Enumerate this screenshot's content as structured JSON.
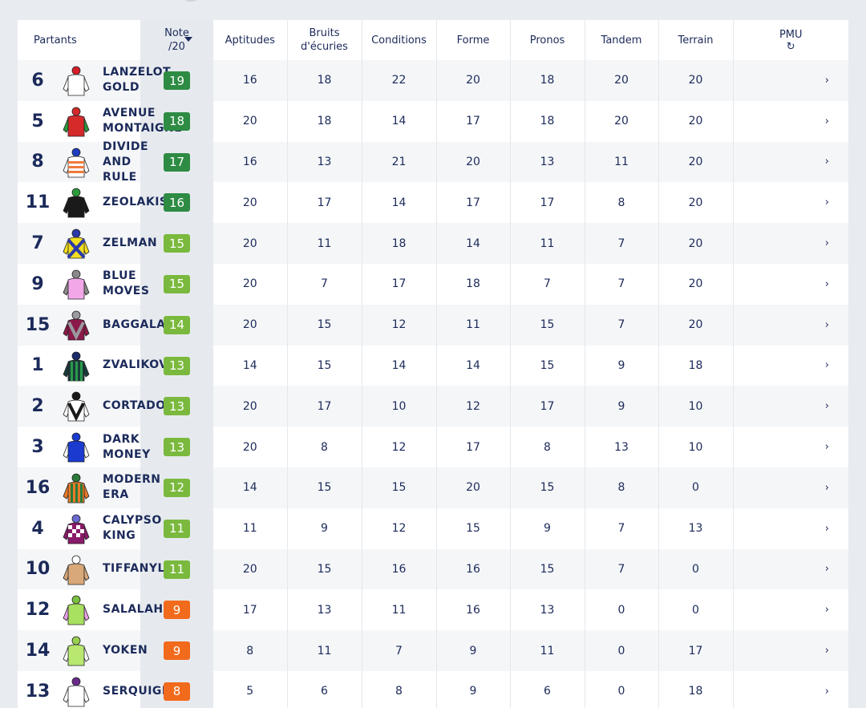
{
  "header": {
    "partants": "Partants",
    "note": "Note",
    "note_sub": "/20",
    "aptitudes": "Aptitudes",
    "bruits_l1": "Bruits",
    "bruits_l2": "d'écuries",
    "conditions": "Conditions",
    "forme": "Forme",
    "pronos": "Pronos",
    "tandem": "Tandem",
    "terrain": "Terrain",
    "pmu": "PMU",
    "pmu_icon": "↻"
  },
  "colors": {
    "green_dark": "#2e8b43",
    "green_light": "#7ab93d",
    "orange": "#f26a1b"
  },
  "chevron": "›",
  "rows": [
    {
      "num": "6",
      "name": [
        "LANZELOT",
        "GOLD"
      ],
      "note": "19",
      "level": "dark",
      "aptitudes": "16",
      "bruits": "18",
      "conditions": "22",
      "forme": "20",
      "pronos": "18",
      "tandem": "20",
      "terrain": "20",
      "silk": {
        "body": "#ffffff",
        "accent": "#1a1a1a",
        "cap": "#d61e2b",
        "pattern": "plain"
      }
    },
    {
      "num": "5",
      "name": [
        "AVENUE",
        "MONTAIGNE"
      ],
      "note": "18",
      "level": "dark",
      "aptitudes": "20",
      "bruits": "18",
      "conditions": "14",
      "forme": "17",
      "pronos": "18",
      "tandem": "20",
      "terrain": "20",
      "silk": {
        "body": "#d42a2a",
        "accent": "#2a9a3a",
        "cap": "#d42a2a",
        "pattern": "sleeves"
      }
    },
    {
      "num": "8",
      "name": [
        "DIVIDE",
        "AND",
        "RULE"
      ],
      "note": "17",
      "level": "dark",
      "aptitudes": "16",
      "bruits": "13",
      "conditions": "21",
      "forme": "20",
      "pronos": "13",
      "tandem": "11",
      "terrain": "20",
      "silk": {
        "body": "#ffffff",
        "accent": "#f07a3a",
        "cap": "#1e3cc0",
        "pattern": "hoops"
      }
    },
    {
      "num": "11",
      "name": [
        "ZEOLAKIS"
      ],
      "note": "16",
      "level": "dark",
      "aptitudes": "20",
      "bruits": "17",
      "conditions": "14",
      "forme": "17",
      "pronos": "17",
      "tandem": "8",
      "terrain": "20",
      "silk": {
        "body": "#1a1a1a",
        "accent": "#8a1a1a",
        "cap": "#2a9a3a",
        "pattern": "plain"
      }
    },
    {
      "num": "7",
      "name": [
        "ZELMAN"
      ],
      "note": "15",
      "level": "light",
      "aptitudes": "20",
      "bruits": "11",
      "conditions": "18",
      "forme": "14",
      "pronos": "11",
      "tandem": "7",
      "terrain": "20",
      "silk": {
        "body": "#f2dd20",
        "accent": "#2a3aa8",
        "cap": "#2a3aa8",
        "pattern": "cross"
      }
    },
    {
      "num": "9",
      "name": [
        "BLUE",
        "MOVES"
      ],
      "note": "15",
      "level": "light",
      "aptitudes": "20",
      "bruits": "7",
      "conditions": "17",
      "forme": "18",
      "pronos": "7",
      "tandem": "7",
      "terrain": "20",
      "silk": {
        "body": "#f2a8e8",
        "accent": "#8a8a8a",
        "cap": "#8a8a8a",
        "pattern": "sleeves"
      }
    },
    {
      "num": "15",
      "name": [
        "BAGGALA"
      ],
      "note": "14",
      "level": "light",
      "aptitudes": "20",
      "bruits": "15",
      "conditions": "12",
      "forme": "11",
      "pronos": "15",
      "tandem": "7",
      "terrain": "20",
      "silk": {
        "body": "#8a1a4a",
        "accent": "#9a9aa0",
        "cap": "#9a9aa0",
        "pattern": "chevron"
      }
    },
    {
      "num": "1",
      "name": [
        "ZVALIKOVA"
      ],
      "note": "13",
      "level": "light",
      "aptitudes": "14",
      "bruits": "15",
      "conditions": "14",
      "forme": "14",
      "pronos": "15",
      "tandem": "9",
      "terrain": "18",
      "silk": {
        "body": "#1a3a3a",
        "accent": "#2a9a4a",
        "cap": "#1a2a6a",
        "pattern": "stripes"
      }
    },
    {
      "num": "2",
      "name": [
        "CORTADO"
      ],
      "note": "13",
      "level": "light",
      "aptitudes": "20",
      "bruits": "17",
      "conditions": "10",
      "forme": "12",
      "pronos": "17",
      "tandem": "9",
      "terrain": "10",
      "silk": {
        "body": "#ffffff",
        "accent": "#1a1a1a",
        "cap": "#1a1a1a",
        "pattern": "chevron"
      }
    },
    {
      "num": "3",
      "name": [
        "DARK",
        "MONEY"
      ],
      "note": "13",
      "level": "light",
      "aptitudes": "20",
      "bruits": "8",
      "conditions": "12",
      "forme": "17",
      "pronos": "8",
      "tandem": "13",
      "terrain": "10",
      "silk": {
        "body": "#1a3ad0",
        "accent": "#ffffff",
        "cap": "#1a3ad0",
        "pattern": "sleeves"
      }
    },
    {
      "num": "16",
      "name": [
        "MODERN",
        "ERA"
      ],
      "note": "12",
      "level": "light",
      "aptitudes": "14",
      "bruits": "15",
      "conditions": "15",
      "forme": "20",
      "pronos": "15",
      "tandem": "8",
      "terrain": "0",
      "silk": {
        "body": "#e87a2a",
        "accent": "#2a7a3a",
        "cap": "#2a7a3a",
        "pattern": "stripes"
      }
    },
    {
      "num": "4",
      "name": [
        "CALYPSO",
        "KING"
      ],
      "note": "11",
      "level": "light",
      "aptitudes": "11",
      "bruits": "9",
      "conditions": "12",
      "forme": "15",
      "pronos": "9",
      "tandem": "7",
      "terrain": "13",
      "silk": {
        "body": "#8a1a6a",
        "accent": "#ffffff",
        "cap": "#6a6ad0",
        "pattern": "checks"
      }
    },
    {
      "num": "10",
      "name": [
        "TIFFANYLITA"
      ],
      "note": "11",
      "level": "light",
      "aptitudes": "20",
      "bruits": "15",
      "conditions": "16",
      "forme": "16",
      "pronos": "15",
      "tandem": "7",
      "terrain": "0",
      "silk": {
        "body": "#d8a878",
        "accent": "#ffffff",
        "cap": "#ffffff",
        "pattern": "plain"
      }
    },
    {
      "num": "12",
      "name": [
        "SALALAH"
      ],
      "note": "9",
      "level": "orange",
      "aptitudes": "17",
      "bruits": "13",
      "conditions": "11",
      "forme": "16",
      "pronos": "13",
      "tandem": "0",
      "terrain": "0",
      "silk": {
        "body": "#a8e060",
        "accent": "#e8a0e8",
        "cap": "#7ac040",
        "pattern": "sleeves"
      }
    },
    {
      "num": "14",
      "name": [
        "YOKEN"
      ],
      "note": "9",
      "level": "orange",
      "aptitudes": "8",
      "bruits": "11",
      "conditions": "7",
      "forme": "9",
      "pronos": "11",
      "tandem": "0",
      "terrain": "17",
      "silk": {
        "body": "#b8e870",
        "accent": "#ffffff",
        "cap": "#9ad050",
        "pattern": "sleeves"
      }
    },
    {
      "num": "13",
      "name": [
        "SERQUIGNY"
      ],
      "note": "8",
      "level": "orange",
      "aptitudes": "5",
      "bruits": "6",
      "conditions": "8",
      "forme": "9",
      "pronos": "6",
      "tandem": "0",
      "terrain": "18",
      "silk": {
        "body": "#ffffff",
        "accent": "#dddddd",
        "cap": "#6a2a8a",
        "pattern": "plain"
      }
    }
  ]
}
